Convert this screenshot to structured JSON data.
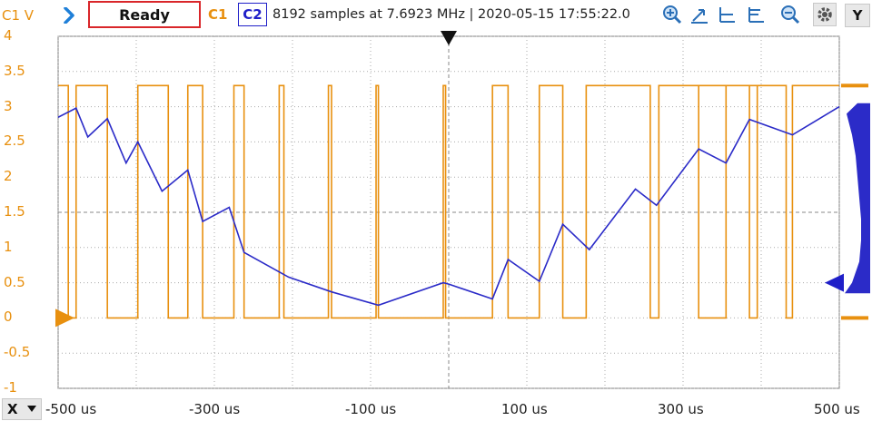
{
  "toolbar": {
    "channel_scale_label": "C1 V",
    "status": "Ready",
    "ch1_label": "C1",
    "ch2_label": "C2",
    "acquisition_info": "8192 samples at 7.6923 MHz | 2020-05-15 17:55:22.0",
    "y_button": "Y",
    "x_button": "X"
  },
  "icons": [
    "run-icon",
    "zoom-in-icon",
    "cursor-up-icon",
    "cursor-align-left-icon",
    "cursor-align-both-icon",
    "zoom-out-icon",
    "settings-gear-icon",
    "dropdown-chevron-icon"
  ],
  "colors": {
    "ch1": "#e8900f",
    "ch2": "#2b2bc8",
    "status_border": "#d9262a",
    "grid": "#9a9a9a"
  },
  "chart_data": {
    "type": "line",
    "title": "",
    "xlabel": "",
    "ylabel": "C1 V",
    "xlim": [
      -500,
      500
    ],
    "ylim": [
      -1,
      4
    ],
    "x_unit": "us",
    "x_ticks": [
      "-500 us",
      "-300 us",
      "-100 us",
      "100 us",
      "300 us",
      "500 us"
    ],
    "y_ticks": [
      "4",
      "3.5",
      "3",
      "2.5",
      "2",
      "1.5",
      "1",
      "0.5",
      "0",
      "-0.5",
      "-1"
    ],
    "grid": true,
    "series": [
      {
        "name": "C1",
        "color": "#e8900f",
        "high": 3.3,
        "low": 0.0,
        "high_intervals": [
          [
            -500,
            -487
          ],
          [
            -477,
            -437
          ],
          [
            -398,
            -359
          ],
          [
            -334,
            -315
          ],
          [
            -275,
            -262
          ],
          [
            -217,
            -211
          ],
          [
            -154,
            -150
          ],
          [
            -93,
            -90
          ],
          [
            -7,
            -4
          ],
          [
            56,
            76
          ],
          [
            116,
            146
          ],
          [
            176,
            258
          ],
          [
            239,
            -1
          ],
          [
            269,
            355
          ],
          [
            320,
            395
          ],
          [
            385,
            432
          ],
          [
            440,
            500
          ]
        ]
      },
      {
        "name": "C2",
        "color": "#2b2bc8",
        "x": [
          -500,
          -477,
          -462,
          -437,
          -413,
          -398,
          -367,
          -334,
          -315,
          -281,
          -262,
          -205,
          -150,
          -90,
          -7,
          0,
          56,
          76,
          116,
          146,
          180,
          239,
          266,
          320,
          355,
          385,
          440,
          500
        ],
        "y": [
          2.85,
          2.98,
          2.57,
          2.83,
          2.2,
          2.5,
          1.8,
          2.1,
          1.37,
          1.57,
          0.93,
          0.58,
          0.37,
          0.18,
          0.5,
          0.48,
          0.27,
          0.83,
          0.52,
          1.33,
          0.97,
          1.83,
          1.6,
          2.4,
          2.2,
          2.82,
          2.6,
          3.0
        ]
      }
    ],
    "trigger_position_x": 0,
    "ch1_offset_marker": 0,
    "ch2_offset_marker": 0.5
  }
}
